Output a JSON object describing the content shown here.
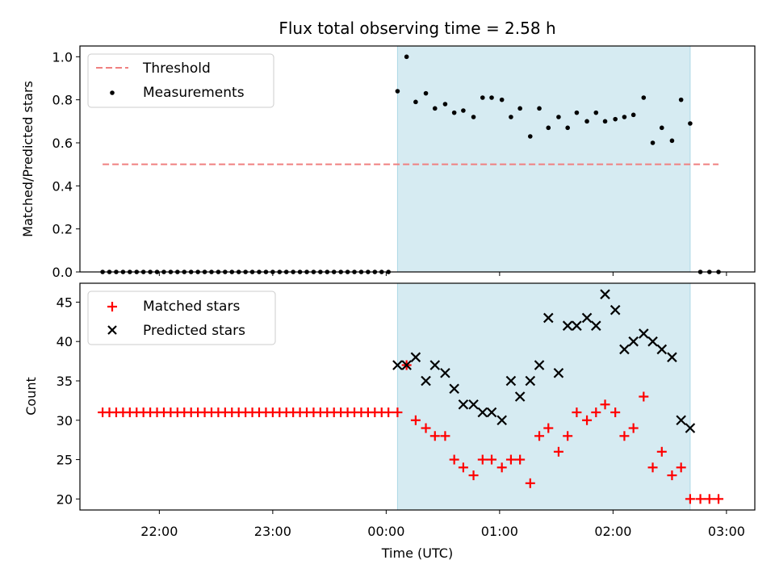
{
  "figure": {
    "title": "Flux total observing time = 2.58 h"
  },
  "colors": {
    "threshold": "#f08080",
    "shade": "#add8e6",
    "measurement": "#000000",
    "matched": "#ff0000",
    "predicted": "#000000"
  },
  "chart_data": [
    {
      "type": "scatter",
      "panel": "top",
      "xlabel": "",
      "ylabel": "Matched/Predicted stars",
      "x_unit": "hours since 21:00 UTC",
      "xlim": [
        0.3,
        6.25
      ],
      "ylim": [
        0,
        1.05
      ],
      "yticks": [
        0.0,
        0.2,
        0.4,
        0.6,
        0.8,
        1.0
      ],
      "ytick_labels": [
        "0.0",
        "0.2",
        "0.4",
        "0.6",
        "0.8",
        "1.0"
      ],
      "observing_span": [
        3.1,
        5.68
      ],
      "legend": {
        "position": "top-left",
        "entries": [
          "Threshold",
          "Measurements"
        ]
      },
      "threshold": {
        "name": "Threshold",
        "value": 0.5,
        "x": [
          0.5,
          5.93
        ]
      },
      "series": [
        {
          "name": "Measurements",
          "x": [
            0.5,
            0.56,
            0.62,
            0.68,
            0.74,
            0.8,
            0.86,
            0.92,
            0.98,
            1.04,
            1.1,
            1.16,
            1.22,
            1.28,
            1.34,
            1.4,
            1.46,
            1.52,
            1.58,
            1.64,
            1.7,
            1.76,
            1.82,
            1.88,
            1.94,
            2.0,
            2.06,
            2.12,
            2.18,
            2.24,
            2.3,
            2.36,
            2.42,
            2.48,
            2.54,
            2.6,
            2.66,
            2.72,
            2.78,
            2.84,
            2.9,
            2.96,
            3.02,
            3.1,
            3.18,
            3.26,
            3.35,
            3.43,
            3.52,
            3.6,
            3.68,
            3.77,
            3.85,
            3.93,
            4.02,
            4.1,
            4.18,
            4.27,
            4.35,
            4.43,
            4.52,
            4.6,
            4.68,
            4.77,
            4.85,
            4.93,
            5.02,
            5.1,
            5.18,
            5.27,
            5.35,
            5.43,
            5.52,
            5.6,
            5.68,
            5.77,
            5.85,
            5.93
          ],
          "y": [
            0,
            0,
            0,
            0,
            0,
            0,
            0,
            0,
            0,
            0,
            0,
            0,
            0,
            0,
            0,
            0,
            0,
            0,
            0,
            0,
            0,
            0,
            0,
            0,
            0,
            0,
            0,
            0,
            0,
            0,
            0,
            0,
            0,
            0,
            0,
            0,
            0,
            0,
            0,
            0,
            0,
            0,
            0,
            0.84,
            1.0,
            0.79,
            0.83,
            0.76,
            0.78,
            0.74,
            0.75,
            0.72,
            0.81,
            0.81,
            0.8,
            0.72,
            0.76,
            0.63,
            0.76,
            0.67,
            0.72,
            0.67,
            0.74,
            0.7,
            0.74,
            0.7,
            0.71,
            0.72,
            0.73,
            0.81,
            0.6,
            0.67,
            0.61,
            0.8,
            0.69,
            0,
            0,
            0
          ]
        }
      ]
    },
    {
      "type": "scatter",
      "panel": "bottom",
      "xlabel": "Time (UTC)",
      "ylabel": "Count",
      "x_unit": "hours since 21:00 UTC",
      "xlim": [
        0.3,
        6.25
      ],
      "ylim": [
        18.6,
        47.4
      ],
      "xticks": [
        1.0,
        2.0,
        3.0,
        4.0,
        5.0,
        6.0
      ],
      "xtick_labels": [
        "22:00",
        "23:00",
        "00:00",
        "01:00",
        "02:00",
        "03:00"
      ],
      "yticks": [
        20,
        25,
        30,
        35,
        40,
        45
      ],
      "ytick_labels": [
        "20",
        "25",
        "30",
        "35",
        "40",
        "45"
      ],
      "observing_span": [
        3.1,
        5.68
      ],
      "legend": {
        "position": "top-left",
        "entries": [
          "Matched stars",
          "Predicted stars"
        ]
      },
      "series": [
        {
          "name": "Matched stars",
          "marker": "+",
          "x": [
            0.5,
            0.56,
            0.62,
            0.68,
            0.74,
            0.8,
            0.86,
            0.92,
            0.98,
            1.04,
            1.1,
            1.16,
            1.22,
            1.28,
            1.34,
            1.4,
            1.46,
            1.52,
            1.58,
            1.64,
            1.7,
            1.76,
            1.82,
            1.88,
            1.94,
            2.0,
            2.06,
            2.12,
            2.18,
            2.24,
            2.3,
            2.36,
            2.42,
            2.48,
            2.54,
            2.6,
            2.66,
            2.72,
            2.78,
            2.84,
            2.9,
            2.96,
            3.02,
            3.1,
            3.18,
            3.26,
            3.35,
            3.43,
            3.52,
            3.6,
            3.68,
            3.77,
            3.85,
            3.93,
            4.02,
            4.1,
            4.18,
            4.27,
            4.35,
            4.43,
            4.52,
            4.6,
            4.68,
            4.77,
            4.85,
            4.93,
            5.02,
            5.1,
            5.18,
            5.27,
            5.35,
            5.43,
            5.52,
            5.6,
            5.68,
            5.77,
            5.85,
            5.93
          ],
          "y": [
            31,
            31,
            31,
            31,
            31,
            31,
            31,
            31,
            31,
            31,
            31,
            31,
            31,
            31,
            31,
            31,
            31,
            31,
            31,
            31,
            31,
            31,
            31,
            31,
            31,
            31,
            31,
            31,
            31,
            31,
            31,
            31,
            31,
            31,
            31,
            31,
            31,
            31,
            31,
            31,
            31,
            31,
            31,
            31,
            37,
            30,
            29,
            28,
            28,
            25,
            24,
            23,
            25,
            25,
            24,
            25,
            25,
            22,
            28,
            29,
            26,
            28,
            31,
            30,
            31,
            32,
            31,
            28,
            29,
            33,
            24,
            26,
            23,
            24,
            20,
            20,
            20,
            20
          ]
        },
        {
          "name": "Predicted stars",
          "marker": "x",
          "x": [
            3.1,
            3.18,
            3.26,
            3.35,
            3.43,
            3.52,
            3.6,
            3.68,
            3.77,
            3.85,
            3.93,
            4.02,
            4.1,
            4.18,
            4.27,
            4.35,
            4.43,
            4.52,
            4.6,
            4.68,
            4.77,
            4.85,
            4.93,
            5.02,
            5.1,
            5.18,
            5.27,
            5.35,
            5.43,
            5.52,
            5.6,
            5.68
          ],
          "y": [
            37,
            37,
            38,
            35,
            37,
            36,
            34,
            32,
            32,
            31,
            31,
            30,
            35,
            33,
            35,
            37,
            43,
            36,
            42,
            42,
            43,
            42,
            46,
            44,
            39,
            40,
            41,
            40,
            39,
            38,
            30,
            29
          ]
        }
      ]
    }
  ]
}
